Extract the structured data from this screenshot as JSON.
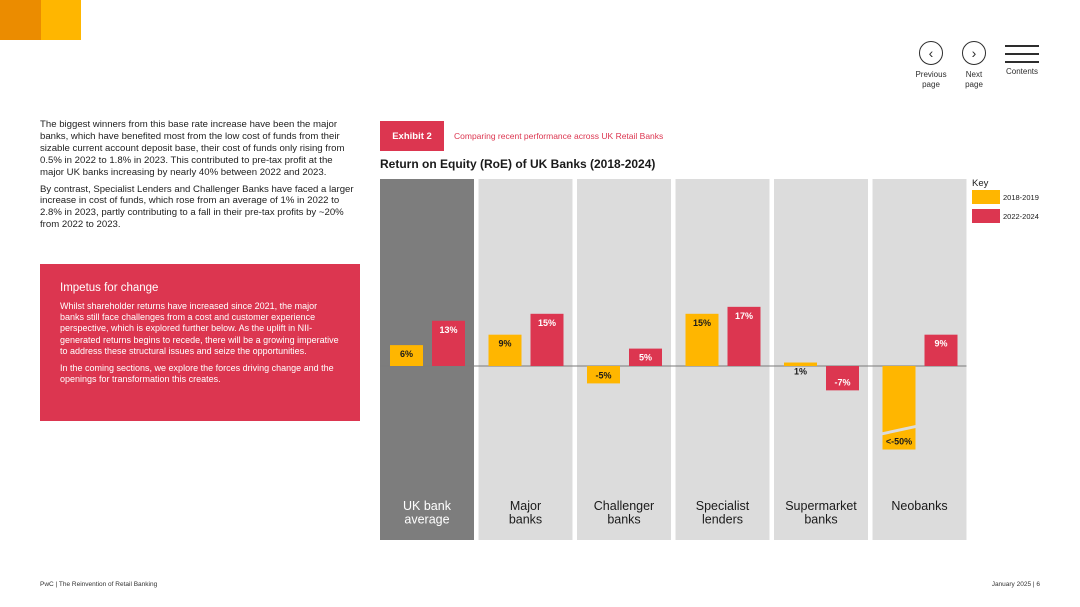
{
  "nav": {
    "previous": "Previous page",
    "next": "Next page",
    "contents": "Contents"
  },
  "body": {
    "paragraphs": [
      "The biggest winners from this base rate increase have been the major banks, which have benefited most from the low cost of funds from their sizable current account deposit base, their cost of funds only rising from 0.5% in 2022 to 1.8% in 2023. This contributed to pre-tax profit at the major UK banks increasing by nearly 40% between 2022 and 2023.",
      "By contrast, Specialist Lenders and Challenger Banks have faced a larger increase in cost of funds, which rose from an average of 1% in 2022 to 2.8% in 2023, partly contributing to a fall in their pre-tax profits by ~20% from 2022 to 2023."
    ]
  },
  "impetus": {
    "title": "Impetus for change",
    "p1": "Whilst shareholder returns have increased since 2021, the major banks still face challenges from a cost and customer experience perspective, which is explored further below. As the uplift in NII-generated returns begins to recede, there will be a growing imperative to address these structural issues and seize the opportunities.",
    "p2": "In the coming sections, we explore the forces driving change and the openings for transformation this creates."
  },
  "exhibit": {
    "badge": "Exhibit 2",
    "subtitle": "Comparing recent performance across UK Retail Banks"
  },
  "chart_data": {
    "type": "bar",
    "title": "Return on Equity (RoE) of UK Banks (2018-2024)",
    "categories": [
      "UK bank average",
      "Major banks",
      "Challenger banks",
      "Specialist lenders",
      "Supermarket banks",
      "Neobanks"
    ],
    "category_lines": [
      [
        "UK bank",
        "average"
      ],
      [
        "Major",
        "banks"
      ],
      [
        "Challenger",
        "banks"
      ],
      [
        "Specialist",
        "lenders"
      ],
      [
        "Supermarket",
        "banks"
      ],
      [
        "Neobanks"
      ]
    ],
    "series": [
      {
        "name": "2018-2019",
        "values": [
          6,
          9,
          -5,
          15,
          1,
          -50
        ],
        "labels": [
          "6%",
          "9%",
          "-5%",
          "15%",
          "1%",
          "<-50%"
        ],
        "color": "#ffb600"
      },
      {
        "name": "2022-2024",
        "values": [
          13,
          15,
          5,
          17,
          -7,
          9
        ],
        "labels": [
          "13%",
          "15%",
          "5%",
          "17%",
          "-7%",
          "9%"
        ],
        "color": "#dc3650"
      }
    ],
    "legend_title": "Key",
    "legend_position": "right",
    "truncated_below": -10,
    "panel_colors": {
      "highlight": "#7d7d7d",
      "default": "#dcdcdc"
    }
  },
  "footer": {
    "left": "PwC | The Reinvention of Retail Banking",
    "right": "January 2025 | 6"
  }
}
